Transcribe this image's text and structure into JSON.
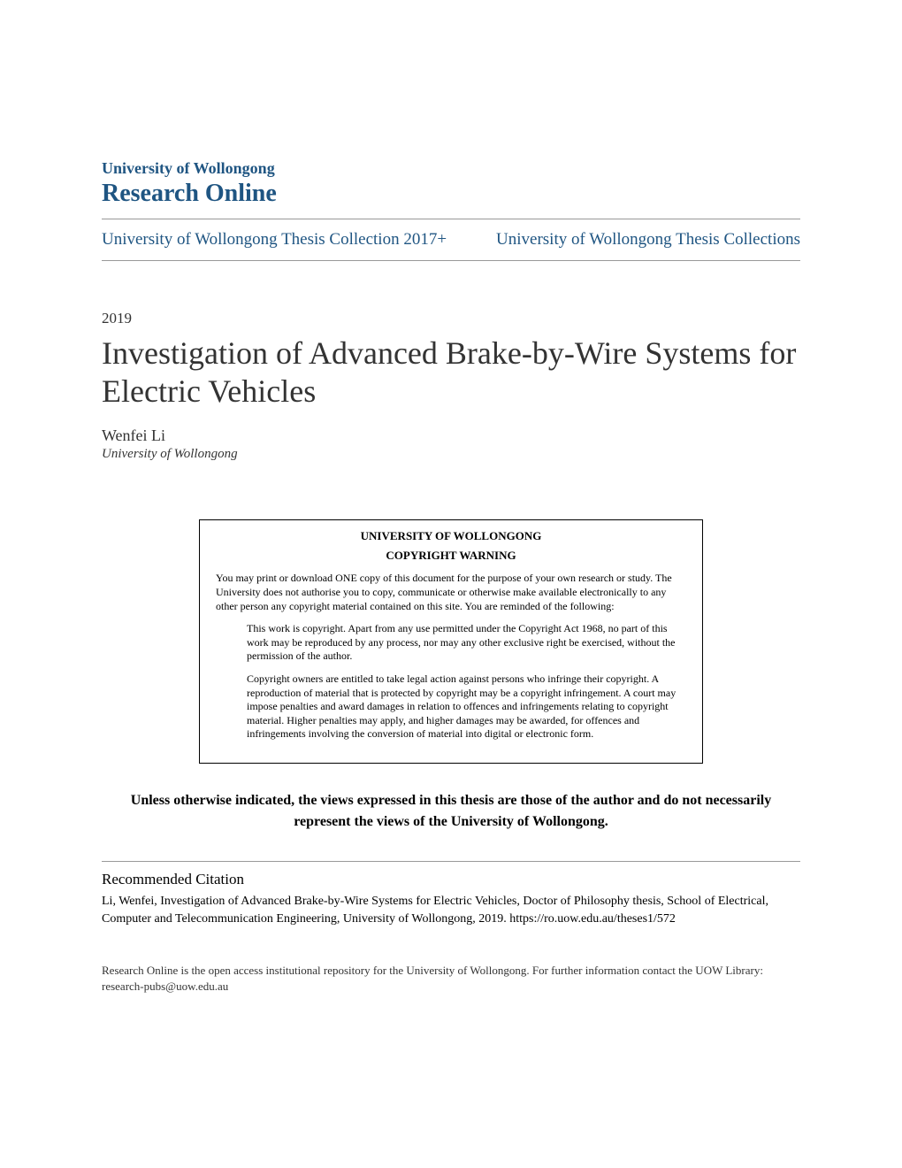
{
  "header": {
    "institution": "University of Wollongong",
    "repository": "Research Online"
  },
  "collections": {
    "left": "University of Wollongong Thesis Collection 2017+",
    "right": "University of Wollongong Thesis Collections"
  },
  "year": "2019",
  "title": "Investigation of Advanced Brake-by-Wire Systems for Electric Vehicles",
  "author": "Wenfei Li",
  "affiliation": "University of Wollongong",
  "copyright": {
    "university": "UNIVERSITY OF WOLLONGONG",
    "warning": "COPYRIGHT WARNING",
    "intro": "You may print or download ONE copy of this document for the purpose of your own research or study. The University does not authorise you to copy, communicate or otherwise make available electronically to any other person any copyright material contained on this site. You are reminded of the following:",
    "para1": "This work is copyright. Apart from any use permitted under the Copyright Act 1968, no part of this work may be reproduced by any process, nor may any other exclusive right be exercised, without the permission of the author.",
    "para2": "Copyright owners are entitled to take legal action against persons who infringe their copyright. A reproduction of material that is protected by copyright may be a copyright infringement. A court may impose penalties and award damages in relation to offences and infringements relating to copyright material. Higher penalties may apply, and higher damages may be awarded, for offences and infringements involving the conversion of material into digital or electronic form."
  },
  "disclaimer": "Unless otherwise indicated, the views expressed in this thesis are those of the author and do not necessarily represent the views of the University of Wollongong.",
  "citation": {
    "heading": "Recommended Citation",
    "text": "Li, Wenfei, Investigation of Advanced Brake-by-Wire Systems for Electric Vehicles, Doctor of Philosophy thesis, School of Electrical, Computer and Telecommunication Engineering, University of Wollongong, 2019. https://ro.uow.edu.au/theses1/572"
  },
  "footer": "Research Online is the open access institutional repository for the University of Wollongong. For further information contact the UOW Library: research-pubs@uow.edu.au",
  "colors": {
    "link_color": "#1f5582",
    "text_color": "#333333",
    "border_color": "#999999",
    "background": "#ffffff"
  }
}
